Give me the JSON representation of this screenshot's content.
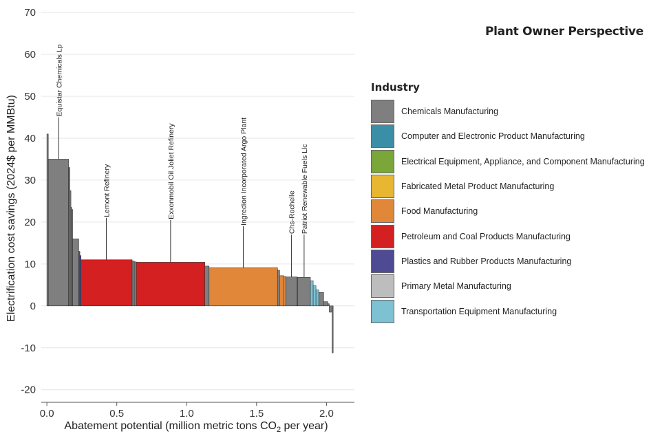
{
  "side_title": "Plant Owner Perspective",
  "legend_title": "Industry",
  "chart_data": {
    "type": "bar",
    "subtype": "marginal-abatement-cost-curve",
    "title": "",
    "xlabel_main": "Abatement potential (million metric tons CO",
    "xlabel_sub": "2",
    "xlabel_tail": " per year)",
    "ylabel": "Electrification cost savings (2024$ per MMBtu)",
    "xlim": [
      -0.04,
      2.2
    ],
    "ylim": [
      -23,
      71
    ],
    "xticks": [
      0.0,
      0.5,
      1.0,
      1.5,
      2.0
    ],
    "xtick_labels": [
      "0.0",
      "0.5",
      "1.0",
      "1.5",
      "2.0"
    ],
    "yticks": [
      -20,
      -10,
      0,
      10,
      20,
      30,
      40,
      50,
      60,
      70
    ],
    "ytick_labels": [
      "-20",
      "-10",
      "0",
      "10",
      "20",
      "30",
      "40",
      "50",
      "60",
      "70"
    ],
    "grid": "horizontal",
    "legend_position": "right",
    "categories": [
      {
        "name": "Chemicals Manufacturing",
        "color": "#7f7f7f"
      },
      {
        "name": "Computer and Electronic Product Manufacturing",
        "color": "#3a8fa6"
      },
      {
        "name": "Electrical Equipment, Appliance, and Component Manufacturing",
        "color": "#7aa63a"
      },
      {
        "name": "Fabricated Metal Product Manufacturing",
        "color": "#e8b731"
      },
      {
        "name": "Food Manufacturing",
        "color": "#e0873a"
      },
      {
        "name": "Petroleum and Coal Products Manufacturing",
        "color": "#d42020"
      },
      {
        "name": "Plastics and Rubber Products Manufacturing",
        "color": "#4e4a93"
      },
      {
        "name": "Primary Metal Manufacturing",
        "color": "#bdbdbd"
      },
      {
        "name": "Transportation Equipment Manufacturing",
        "color": "#7dc1d3"
      }
    ],
    "bars": [
      {
        "x0": 0.0,
        "x1": 0.01,
        "y": 41,
        "industry": 0
      },
      {
        "x0": 0.01,
        "x1": 0.155,
        "y": 35,
        "industry": 0
      },
      {
        "x0": 0.155,
        "x1": 0.165,
        "y": 33,
        "industry": 0
      },
      {
        "x0": 0.165,
        "x1": 0.172,
        "y": 27.5,
        "industry": 0
      },
      {
        "x0": 0.172,
        "x1": 0.178,
        "y": 23.5,
        "industry": 0
      },
      {
        "x0": 0.178,
        "x1": 0.184,
        "y": 23,
        "industry": 0
      },
      {
        "x0": 0.184,
        "x1": 0.228,
        "y": 16,
        "industry": 0
      },
      {
        "x0": 0.228,
        "x1": 0.236,
        "y": 13,
        "industry": 6
      },
      {
        "x0": 0.236,
        "x1": 0.244,
        "y": 12,
        "industry": 6
      },
      {
        "x0": 0.244,
        "x1": 0.61,
        "y": 11,
        "industry": 5
      },
      {
        "x0": 0.61,
        "x1": 0.625,
        "y": 10.7,
        "industry": 0
      },
      {
        "x0": 0.625,
        "x1": 0.64,
        "y": 10.5,
        "industry": 0
      },
      {
        "x0": 0.64,
        "x1": 1.13,
        "y": 10.4,
        "industry": 5
      },
      {
        "x0": 1.13,
        "x1": 1.16,
        "y": 9.5,
        "industry": 0
      },
      {
        "x0": 1.16,
        "x1": 1.65,
        "y": 9.1,
        "industry": 4
      },
      {
        "x0": 1.65,
        "x1": 1.665,
        "y": 8.5,
        "industry": 0
      },
      {
        "x0": 1.665,
        "x1": 1.695,
        "y": 7.2,
        "industry": 4
      },
      {
        "x0": 1.695,
        "x1": 1.71,
        "y": 7.0,
        "industry": 4
      },
      {
        "x0": 1.71,
        "x1": 1.79,
        "y": 6.9,
        "industry": 0
      },
      {
        "x0": 1.79,
        "x1": 1.795,
        "y": 6.8,
        "industry": 0
      },
      {
        "x0": 1.795,
        "x1": 1.885,
        "y": 6.8,
        "industry": 0
      },
      {
        "x0": 1.885,
        "x1": 1.905,
        "y": 6.0,
        "industry": 8
      },
      {
        "x0": 1.905,
        "x1": 1.925,
        "y": 4.8,
        "industry": 8
      },
      {
        "x0": 1.925,
        "x1": 1.945,
        "y": 3.8,
        "industry": 8
      },
      {
        "x0": 1.945,
        "x1": 1.98,
        "y": 3.2,
        "industry": 0
      },
      {
        "x0": 1.98,
        "x1": 2.01,
        "y": 1.0,
        "industry": 0
      },
      {
        "x0": 2.01,
        "x1": 2.02,
        "y": 0.5,
        "industry": 0
      },
      {
        "x0": 2.02,
        "x1": 2.04,
        "y": -1.5,
        "industry": 0
      },
      {
        "x0": 2.04,
        "x1": 2.048,
        "y": -11.2,
        "industry": 0
      }
    ],
    "annotations": [
      {
        "label": "Equistar Chemicals Lp",
        "x": 0.085,
        "y_base": 35,
        "y_top": 45
      },
      {
        "label": "Lemont Refinery",
        "x": 0.425,
        "y_base": 11,
        "y_top": 21
      },
      {
        "label": "Exxonmobil Oil Joliet Refinery",
        "x": 0.885,
        "y_base": 10.4,
        "y_top": 20.5
      },
      {
        "label": "Ingredion Incorporated Argo Plant",
        "x": 1.405,
        "y_base": 9.1,
        "y_top": 19
      },
      {
        "label": "Chs-Rochelle",
        "x": 1.75,
        "y_base": 6.9,
        "y_top": 17
      },
      {
        "label": "Patriot Renewable Fuels Llc",
        "x": 1.84,
        "y_base": 6.8,
        "y_top": 17
      }
    ]
  }
}
